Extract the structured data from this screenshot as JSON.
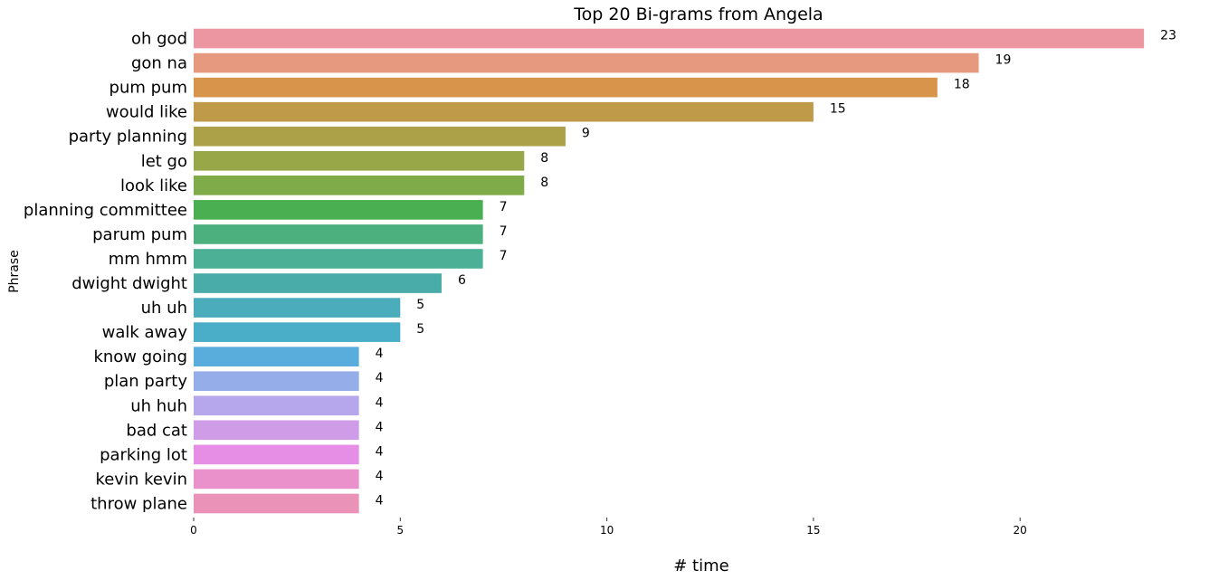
{
  "chart_data": {
    "type": "bar",
    "orientation": "horizontal",
    "title": "Top 20 Bi-grams from Angela",
    "xlabel": "# time",
    "ylabel": "Phrase",
    "xlim": [
      0,
      23.5
    ],
    "xticks": [
      0,
      5,
      10,
      15,
      20
    ],
    "grid": false,
    "legend": "none",
    "categories": [
      "oh god",
      "gon na",
      "pum pum",
      "would like",
      "party planning",
      "let go",
      "look like",
      "planning committee",
      "parum pum",
      "mm hmm",
      "dwight dwight",
      "uh uh",
      "walk away",
      "know going",
      "plan party",
      "uh huh",
      "bad cat",
      "parking lot",
      "kevin kevin",
      "throw plane"
    ],
    "values": [
      23,
      19,
      18,
      15,
      9,
      8,
      8,
      7,
      7,
      7,
      6,
      5,
      5,
      4,
      4,
      4,
      4,
      4,
      4,
      4
    ],
    "colors": [
      "#ec96a1",
      "#e7997f",
      "#d9944c",
      "#bf9a48",
      "#aca148",
      "#98a748",
      "#80ab49",
      "#4aaf50",
      "#4baf7e",
      "#4bb096",
      "#4aaca8",
      "#4bacbb",
      "#4baec8",
      "#59addc",
      "#95aeea",
      "#b6a6ec",
      "#cf9de7",
      "#e68ee5",
      "#ea90cb",
      "#ea92b8"
    ]
  }
}
